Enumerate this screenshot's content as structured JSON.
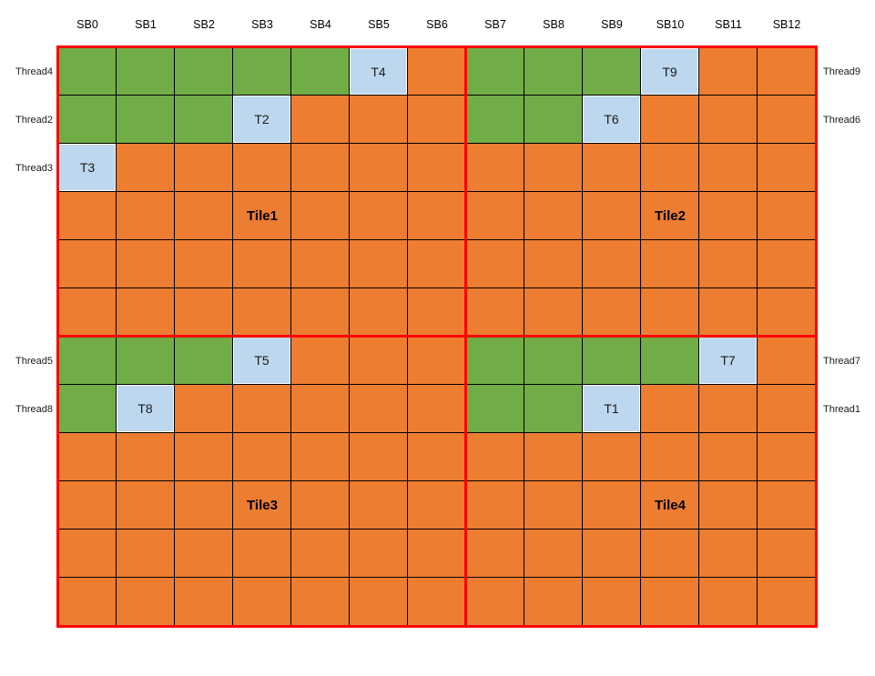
{
  "columns": [
    "SB0",
    "SB1",
    "SB2",
    "SB3",
    "SB4",
    "SB5",
    "SB6",
    "SB7",
    "SB8",
    "SB9",
    "SB10",
    "SB11",
    "SB12"
  ],
  "row_labels_left": [
    {
      "row": 0,
      "label": "Thread4"
    },
    {
      "row": 1,
      "label": "Thread2"
    },
    {
      "row": 2,
      "label": "Thread3"
    },
    {
      "row": 6,
      "label": "Thread5"
    },
    {
      "row": 7,
      "label": "Thread8"
    }
  ],
  "row_labels_right": [
    {
      "row": 0,
      "label": "Thread9"
    },
    {
      "row": 1,
      "label": "Thread6"
    },
    {
      "row": 6,
      "label": "Thread7"
    },
    {
      "row": 7,
      "label": "Thread1"
    }
  ],
  "tile_labels": [
    {
      "row": 3,
      "col": 3,
      "label": "Tile1"
    },
    {
      "row": 3,
      "col": 10,
      "label": "Tile2"
    },
    {
      "row": 9,
      "col": 3,
      "label": "Tile3"
    },
    {
      "row": 9,
      "col": 10,
      "label": "Tile4"
    }
  ],
  "grid": {
    "rows": 12,
    "cols": 13,
    "cells": [
      [
        "g",
        "g",
        "g",
        "g",
        "g",
        "T4",
        "o",
        "g",
        "g",
        "g",
        "T9",
        "o",
        "o"
      ],
      [
        "g",
        "g",
        "g",
        "T2",
        "o",
        "o",
        "o",
        "g",
        "g",
        "T6",
        "o",
        "o",
        "o"
      ],
      [
        "T3",
        "o",
        "o",
        "o",
        "o",
        "o",
        "o",
        "o",
        "o",
        "o",
        "o",
        "o",
        "o"
      ],
      [
        "o",
        "o",
        "o",
        "o",
        "o",
        "o",
        "o",
        "o",
        "o",
        "o",
        "o",
        "o",
        "o"
      ],
      [
        "o",
        "o",
        "o",
        "o",
        "o",
        "o",
        "o",
        "o",
        "o",
        "o",
        "o",
        "o",
        "o"
      ],
      [
        "o",
        "o",
        "o",
        "o",
        "o",
        "o",
        "o",
        "o",
        "o",
        "o",
        "o",
        "o",
        "o"
      ],
      [
        "g",
        "g",
        "g",
        "T5",
        "o",
        "o",
        "o",
        "g",
        "g",
        "g",
        "g",
        "T7",
        "o"
      ],
      [
        "g",
        "T8",
        "o",
        "o",
        "o",
        "o",
        "o",
        "g",
        "g",
        "T1",
        "o",
        "o",
        "o"
      ],
      [
        "o",
        "o",
        "o",
        "o",
        "o",
        "o",
        "o",
        "o",
        "o",
        "o",
        "o",
        "o",
        "o"
      ],
      [
        "o",
        "o",
        "o",
        "o",
        "o",
        "o",
        "o",
        "o",
        "o",
        "o",
        "o",
        "o",
        "o"
      ],
      [
        "o",
        "o",
        "o",
        "o",
        "o",
        "o",
        "o",
        "o",
        "o",
        "o",
        "o",
        "o",
        "o"
      ],
      [
        "o",
        "o",
        "o",
        "o",
        "o",
        "o",
        "o",
        "o",
        "o",
        "o",
        "o",
        "o",
        "o"
      ]
    ]
  },
  "colors": {
    "green": "#70AD47",
    "orange": "#ED7D31",
    "blue": "#BDD7EE",
    "divider": "#FF0000",
    "grid_line": "#000000"
  }
}
